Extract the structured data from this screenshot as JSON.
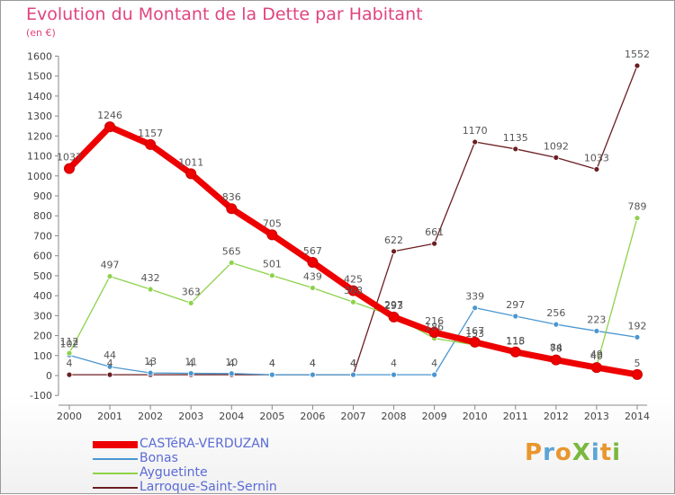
{
  "title": "Evolution du Montant de la Dette par Habitant",
  "subtitle": "(en €)",
  "logo": {
    "text": "ProXiti",
    "letter_colors": [
      "#e8962e",
      "#5ba4d6",
      "#e8962e",
      "#7ab83d",
      "#5ba4d6",
      "#e8962e",
      "#7ab83d"
    ]
  },
  "chart_data": {
    "type": "line",
    "title": "Evolution du Montant de la Dette par Habitant",
    "ylabel": "(en €)",
    "xlabel": "",
    "ylim": [
      -100,
      1600
    ],
    "yticks": [
      -100,
      0,
      100,
      200,
      300,
      400,
      500,
      600,
      700,
      800,
      900,
      1000,
      1100,
      1200,
      1300,
      1400,
      1500,
      1600
    ],
    "grid": false,
    "legend_position": "bottom-left",
    "categories": [
      "2000",
      "2001",
      "2002",
      "2003",
      "2004",
      "2005",
      "2006",
      "2007",
      "2008",
      "2009",
      "2010",
      "2011",
      "2012",
      "2013",
      "2014"
    ],
    "series": [
      {
        "name": "Larroque-Saint-Sernin",
        "color": "#6b1f22",
        "values": [
          4,
          4,
          4,
          4,
          4,
          4,
          4,
          4,
          622,
          661,
          1170,
          1135,
          1092,
          1033,
          1552
        ]
      },
      {
        "name": "Bonas",
        "color": "#4a96d0",
        "values": [
          102,
          44,
          13,
          11,
          10,
          4,
          4,
          4,
          4,
          4,
          339,
          297,
          256,
          223,
          192
        ]
      },
      {
        "name": "Ayguetinte",
        "color": "#8ed24a",
        "values": [
          112,
          497,
          432,
          363,
          565,
          501,
          439,
          368,
          297,
          186,
          153,
          115,
          84,
          49,
          789
        ]
      },
      {
        "name": "CASTéRA-VERDUZAN",
        "color": "#ee0000",
        "values": [
          1037,
          1246,
          1157,
          1011,
          836,
          705,
          567,
          425,
          293,
          216,
          167,
          118,
          78,
          40,
          5
        ]
      }
    ]
  }
}
